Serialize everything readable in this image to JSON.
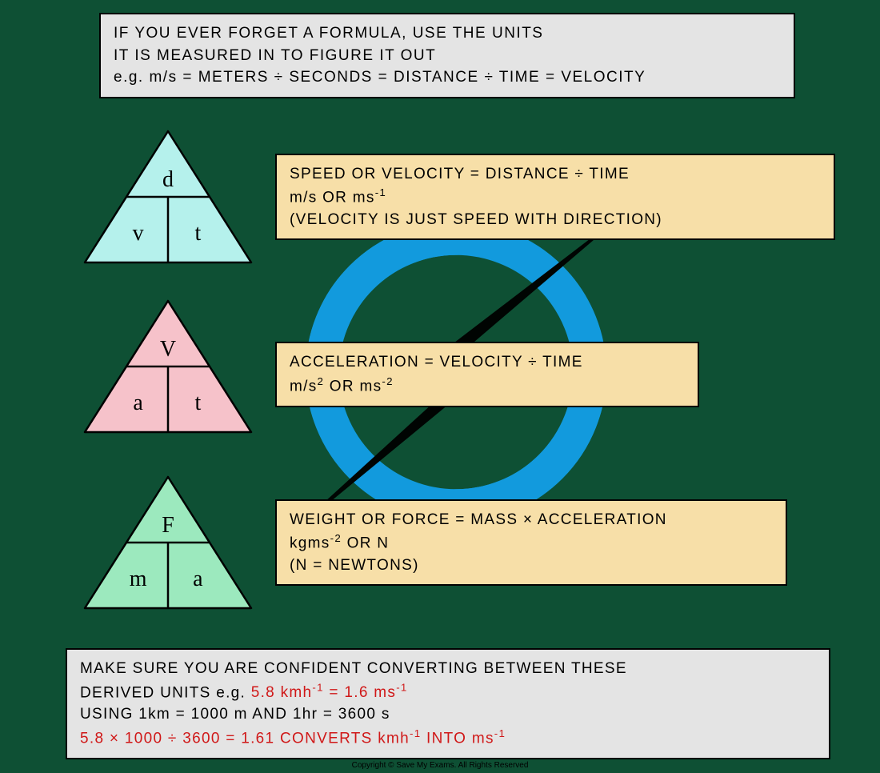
{
  "colors": {
    "background": "#0e5034",
    "top_box_bg": "#e4e4e4",
    "bottom_box_bg": "#e4e4e4",
    "desc_box_bg": "#f7dfa8",
    "triangle1_fill": "#b5f1ec",
    "triangle2_fill": "#f6c2ca",
    "triangle3_fill": "#9ce9be",
    "triangle_stroke": "#000000",
    "red_text": "#d01818",
    "watermark_blue": "#139ee7",
    "watermark_black": "#000000"
  },
  "top_box": {
    "line1": "IF YOU EVER FORGET A FORMULA, USE THE UNITS",
    "line2": "IT IS MEASURED IN TO FIGURE IT OUT",
    "line3": "e.g. m/s = METERS ÷ SECONDS = DISTANCE ÷ TIME = VELOCITY"
  },
  "rows": [
    {
      "triangle": {
        "top": "d",
        "bottom_left": "v",
        "bottom_right": "t",
        "fill_key": "triangle1_fill"
      },
      "desc": {
        "line1": "SPEED OR VELOCITY =  DISTANCE ÷ TIME",
        "line2_html": "m/s OR ms<sup>-1</sup>",
        "line3": "(VELOCITY IS JUST SPEED  WITH DIRECTION)"
      }
    },
    {
      "triangle": {
        "top": "V",
        "bottom_left": "a",
        "bottom_right": "t",
        "fill_key": "triangle2_fill"
      },
      "desc": {
        "line1": "ACCELERATION = VELOCITY ÷ TIME",
        "line2_html": "m/s<sup>2</sup>  OR  ms<sup>-2</sup>"
      }
    },
    {
      "triangle": {
        "top": "F",
        "bottom_left": "m",
        "bottom_right": "a",
        "fill_key": "triangle3_fill"
      },
      "desc": {
        "line1": "WEIGHT OR FORCE = MASS × ACCELERATION",
        "line2_html": "kgms<sup>-2</sup> OR N",
        "line3": "(N = NEWTONS)"
      }
    }
  ],
  "bottom_box": {
    "line1_a": "MAKE SURE YOU ARE CONFIDENT CONVERTING BETWEEN THESE",
    "line2_a": "DERIVED UNITS  e.g. ",
    "line2_b_red_html": "5.8 kmh<sup>-1</sup> = 1.6 ms<sup>-1</sup>",
    "line3": "USING  1km = 1000 m  AND  1hr = 3600 s",
    "line4_red_html": "5.8 × 1000 ÷ 3600 = 1.61 CONVERTS  kmh<sup>-1</sup>  INTO  ms<sup>-1</sup>"
  },
  "copyright": "Copyright © Save My Exams. All Rights Reserved"
}
